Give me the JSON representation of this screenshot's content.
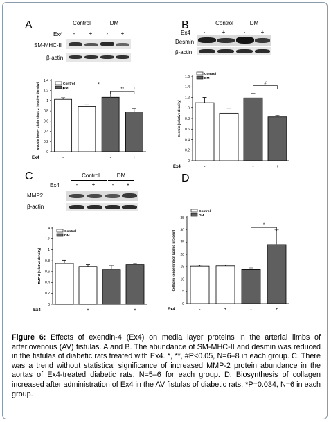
{
  "panels": {
    "A": {
      "letter": "A",
      "groups": [
        "Control",
        "DM"
      ],
      "ex4_label": "Ex4",
      "signs": [
        "-",
        "+",
        "-",
        "+"
      ],
      "blots": [
        "SM-MHC-II",
        "β-actin"
      ]
    },
    "B": {
      "letter": "B",
      "groups": [
        "Control",
        "DM"
      ],
      "ex4_label": "Ex4",
      "signs": [
        "-",
        "+",
        "-",
        "+"
      ],
      "blots": [
        "Desmin",
        "β-actin"
      ]
    },
    "C": {
      "letter": "C",
      "groups": [
        "Control",
        "DM"
      ],
      "ex4_label": "Ex4",
      "signs": [
        "-",
        "+",
        "-",
        "+"
      ],
      "blots": [
        "MMP2",
        "β-actin"
      ]
    },
    "D": {
      "letter": "D"
    }
  },
  "colors": {
    "control": "#ffffff",
    "dm": "#5f5f5f",
    "blot_bg": "#e6e6e6",
    "band": "#2a2a2a"
  },
  "chart_data": [
    {
      "panel": "A",
      "type": "bar",
      "categories": [
        "-",
        "+",
        "-",
        "+"
      ],
      "xlabel": "Ex4",
      "ylabel": "Myosin heavy chain class 2 (relative density)",
      "ylim": [
        0,
        1.4
      ],
      "yticks": [
        "0",
        "0.2",
        "0.4",
        "0.6",
        "0.8",
        "1",
        "1.2",
        "1.4"
      ],
      "series": [
        {
          "name": "Control",
          "values": [
            1.03,
            0.89,
            null,
            null
          ],
          "errors": [
            0.03,
            0.03,
            null,
            null
          ]
        },
        {
          "name": "DM",
          "values": [
            null,
            null,
            1.07,
            0.78
          ],
          "errors": [
            null,
            null,
            0.12,
            0.07
          ]
        }
      ],
      "legend": {
        "placement": "top-left",
        "entries": [
          "Control",
          "DM"
        ]
      },
      "annotations": [
        "*",
        "**"
      ]
    },
    {
      "panel": "B",
      "type": "bar",
      "categories": [
        "-",
        "+",
        "-",
        "+"
      ],
      "xlabel": "Ex4",
      "ylabel": "Desmin (relative density)",
      "ylim": [
        0,
        1.6
      ],
      "yticks": [
        "0",
        "0.2",
        "0.4",
        "0.6",
        "0.8",
        "1.0",
        "1.2",
        "1.4",
        "1.6"
      ],
      "series": [
        {
          "name": "Control",
          "values": [
            1.1,
            0.9,
            null,
            null
          ],
          "errors": [
            0.1,
            0.08,
            null,
            null
          ]
        },
        {
          "name": "DM",
          "values": [
            null,
            null,
            1.19,
            0.83
          ],
          "errors": [
            null,
            null,
            0.09,
            0.03
          ]
        }
      ],
      "legend": {
        "placement": "top-left",
        "entries": [
          "Control",
          "DM"
        ]
      },
      "annotations": [
        "#"
      ]
    },
    {
      "panel": "C",
      "type": "bar",
      "categories": [
        "-",
        "+",
        "-",
        "+"
      ],
      "xlabel": "Ex4",
      "ylabel": "MMP-2 (relative density)",
      "ylim": [
        0,
        1.4
      ],
      "yticks": [
        "0",
        "0.2",
        "0.4",
        "0.6",
        "0.8",
        "1",
        "1.2",
        "1.4"
      ],
      "series": [
        {
          "name": "Control",
          "values": [
            0.75,
            0.69,
            null,
            null
          ],
          "errors": [
            0.06,
            0.04,
            null,
            null
          ]
        },
        {
          "name": "DM",
          "values": [
            null,
            null,
            0.64,
            0.73
          ],
          "errors": [
            null,
            null,
            0.07,
            0.02
          ]
        }
      ],
      "legend": {
        "placement": "top-left",
        "entries": [
          "Control",
          "DM"
        ]
      },
      "annotations": []
    },
    {
      "panel": "D",
      "type": "bar",
      "categories": [
        "-",
        "+",
        "-",
        "+"
      ],
      "xlabel": "Ex4",
      "ylabel": "Collagen concentration (µg/mg pro-gein)",
      "ylim": [
        0,
        35
      ],
      "yticks": [
        "0",
        "5",
        "10",
        "15",
        "20",
        "25",
        "30",
        "35"
      ],
      "series": [
        {
          "name": "Control",
          "values": [
            15.2,
            15.3,
            null,
            null
          ],
          "errors": [
            0.4,
            0.4,
            null,
            null
          ]
        },
        {
          "name": "DM",
          "values": [
            null,
            null,
            14.0,
            24.0
          ],
          "errors": [
            null,
            null,
            0.4,
            6.0
          ]
        }
      ],
      "legend": {
        "placement": "top-left",
        "entries": [
          "Control",
          "DM"
        ]
      },
      "annotations": [
        "*"
      ]
    }
  ],
  "caption": {
    "label": "Figure 6:",
    "text": " Effects of exendin-4 (Ex4) on media layer proteins in the arterial limbs of arteriovenous (AV) fistulas. A and B. The abundance of SM-MHC-II and desmin was reduced in the fistulas of diabetic rats treated with Ex4. *, **, #P<0.05, N=6–8 in each group. C. There was a trend without statistical significance of increased MMP-2 protein abundance in the aortas of Ex4-treated diabetic rats. N=5–6 for each group. D. Biosynthesis of collagen increased after administration of Ex4 in the AV fistulas of diabetic rats. *P=0.034, N=6 in each group."
  }
}
